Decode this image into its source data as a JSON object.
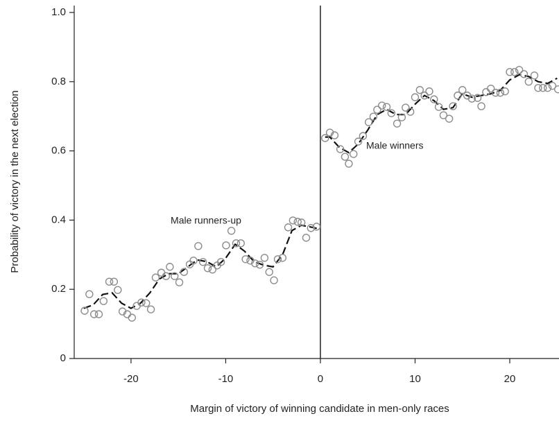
{
  "chart_data": {
    "type": "scatter",
    "xlabel": "Margin of victory of winning candidate in men-only races",
    "ylabel": "Probability of victory in the next election",
    "xlim": [
      -26,
      25.2
    ],
    "ylim": [
      0,
      1.02
    ],
    "xticks": [
      -20,
      -10,
      0,
      10,
      20
    ],
    "yticks": [
      0,
      0.2,
      0.4,
      0.6,
      0.8,
      {
        "value": 1.0,
        "label": "1.0"
      }
    ],
    "cutoff": 0,
    "annotations": [
      "Male runners-up",
      "Male winners"
    ],
    "points": [
      {
        "color": "#8c8c8c",
        "x": [
          -24.9,
          -24.4,
          -23.9,
          -23.4,
          -22.9,
          -22.3,
          -21.8,
          -21.4,
          -20.9,
          -20.4,
          -19.9,
          -19.4,
          -18.9,
          -18.4,
          -17.9,
          -17.4,
          -16.8,
          -16.3,
          -15.9,
          -15.4,
          -14.9,
          -14.4,
          -13.8,
          -13.4,
          -12.9,
          -12.4,
          -11.9,
          -11.4,
          -10.9,
          -10.5,
          -9.96,
          -9.4,
          -8.9,
          -8.4,
          -7.9,
          -7.4,
          -6.9,
          -6.4,
          -5.9,
          -5.4,
          -4.9,
          -4.5,
          -4.0,
          -3.4,
          -2.9,
          -2.4,
          -2.0,
          -1.5,
          -1.0,
          -0.4
        ],
        "values": [
          0.138,
          0.186,
          0.128,
          0.128,
          0.166,
          0.222,
          0.222,
          0.198,
          0.136,
          0.128,
          0.118,
          0.152,
          0.162,
          0.16,
          0.142,
          0.234,
          0.248,
          0.238,
          0.265,
          0.238,
          0.22,
          0.25,
          0.272,
          0.283,
          0.325,
          0.279,
          0.261,
          0.257,
          0.269,
          0.279,
          0.327,
          0.369,
          0.333,
          0.333,
          0.287,
          0.283,
          0.275,
          0.271,
          0.291,
          0.25,
          0.226,
          0.287,
          0.291,
          0.379,
          0.399,
          0.395,
          0.393,
          0.349,
          0.377,
          0.381
        ]
      },
      {
        "color": "#8c8c8c",
        "x": [
          0.5,
          1.0,
          1.5,
          2.1,
          2.6,
          3.0,
          3.5,
          4.0,
          4.5,
          5.1,
          5.6,
          6.0,
          6.5,
          7.0,
          7.5,
          8.1,
          8.6,
          9.0,
          9.5,
          10.0,
          10.5,
          11.0,
          11.5,
          12.0,
          12.5,
          13.0,
          13.6,
          14.0,
          14.5,
          15.0,
          15.5,
          16.0,
          16.6,
          17.0,
          17.5,
          18.0,
          18.5,
          19.0,
          19.5,
          20.0,
          20.5,
          21.0,
          21.5,
          22.0,
          22.6,
          23.0,
          23.5,
          24.0,
          24.5,
          25.1
        ],
        "values": [
          0.637,
          0.653,
          0.645,
          0.605,
          0.583,
          0.563,
          0.591,
          0.627,
          0.643,
          0.683,
          0.699,
          0.719,
          0.731,
          0.727,
          0.709,
          0.679,
          0.697,
          0.725,
          0.713,
          0.755,
          0.776,
          0.76,
          0.772,
          0.749,
          0.727,
          0.703,
          0.693,
          0.729,
          0.76,
          0.776,
          0.76,
          0.751,
          0.753,
          0.729,
          0.77,
          0.78,
          0.768,
          0.768,
          0.772,
          0.828,
          0.828,
          0.834,
          0.822,
          0.8,
          0.818,
          0.782,
          0.782,
          0.782,
          0.788,
          0.778
        ]
      }
    ],
    "fits": [
      {
        "color": "#111111",
        "x": [
          -25,
          -24,
          -23,
          -22,
          -21,
          -20,
          -19,
          -18,
          -17,
          -16,
          -15,
          -14,
          -13,
          -12,
          -11,
          -10,
          -9,
          -8,
          -7,
          -6,
          -5,
          -4,
          -3,
          -2,
          -1,
          -0.2
        ],
        "values": [
          0.145,
          0.155,
          0.185,
          0.19,
          0.16,
          0.145,
          0.16,
          0.19,
          0.23,
          0.245,
          0.245,
          0.265,
          0.285,
          0.28,
          0.265,
          0.29,
          0.33,
          0.31,
          0.28,
          0.27,
          0.265,
          0.3,
          0.37,
          0.385,
          0.38,
          0.375
        ]
      },
      {
        "color": "#111111",
        "x": [
          0.5,
          1,
          2,
          3,
          4,
          5,
          6,
          7,
          8,
          9,
          10,
          11,
          12,
          13,
          14,
          15,
          16,
          17,
          18,
          19,
          20,
          21,
          22,
          23,
          24,
          25
        ],
        "values": [
          0.64,
          0.64,
          0.61,
          0.595,
          0.62,
          0.66,
          0.705,
          0.72,
          0.705,
          0.705,
          0.735,
          0.76,
          0.745,
          0.72,
          0.725,
          0.765,
          0.755,
          0.76,
          0.765,
          0.775,
          0.805,
          0.82,
          0.815,
          0.8,
          0.795,
          0.81
        ]
      }
    ]
  }
}
